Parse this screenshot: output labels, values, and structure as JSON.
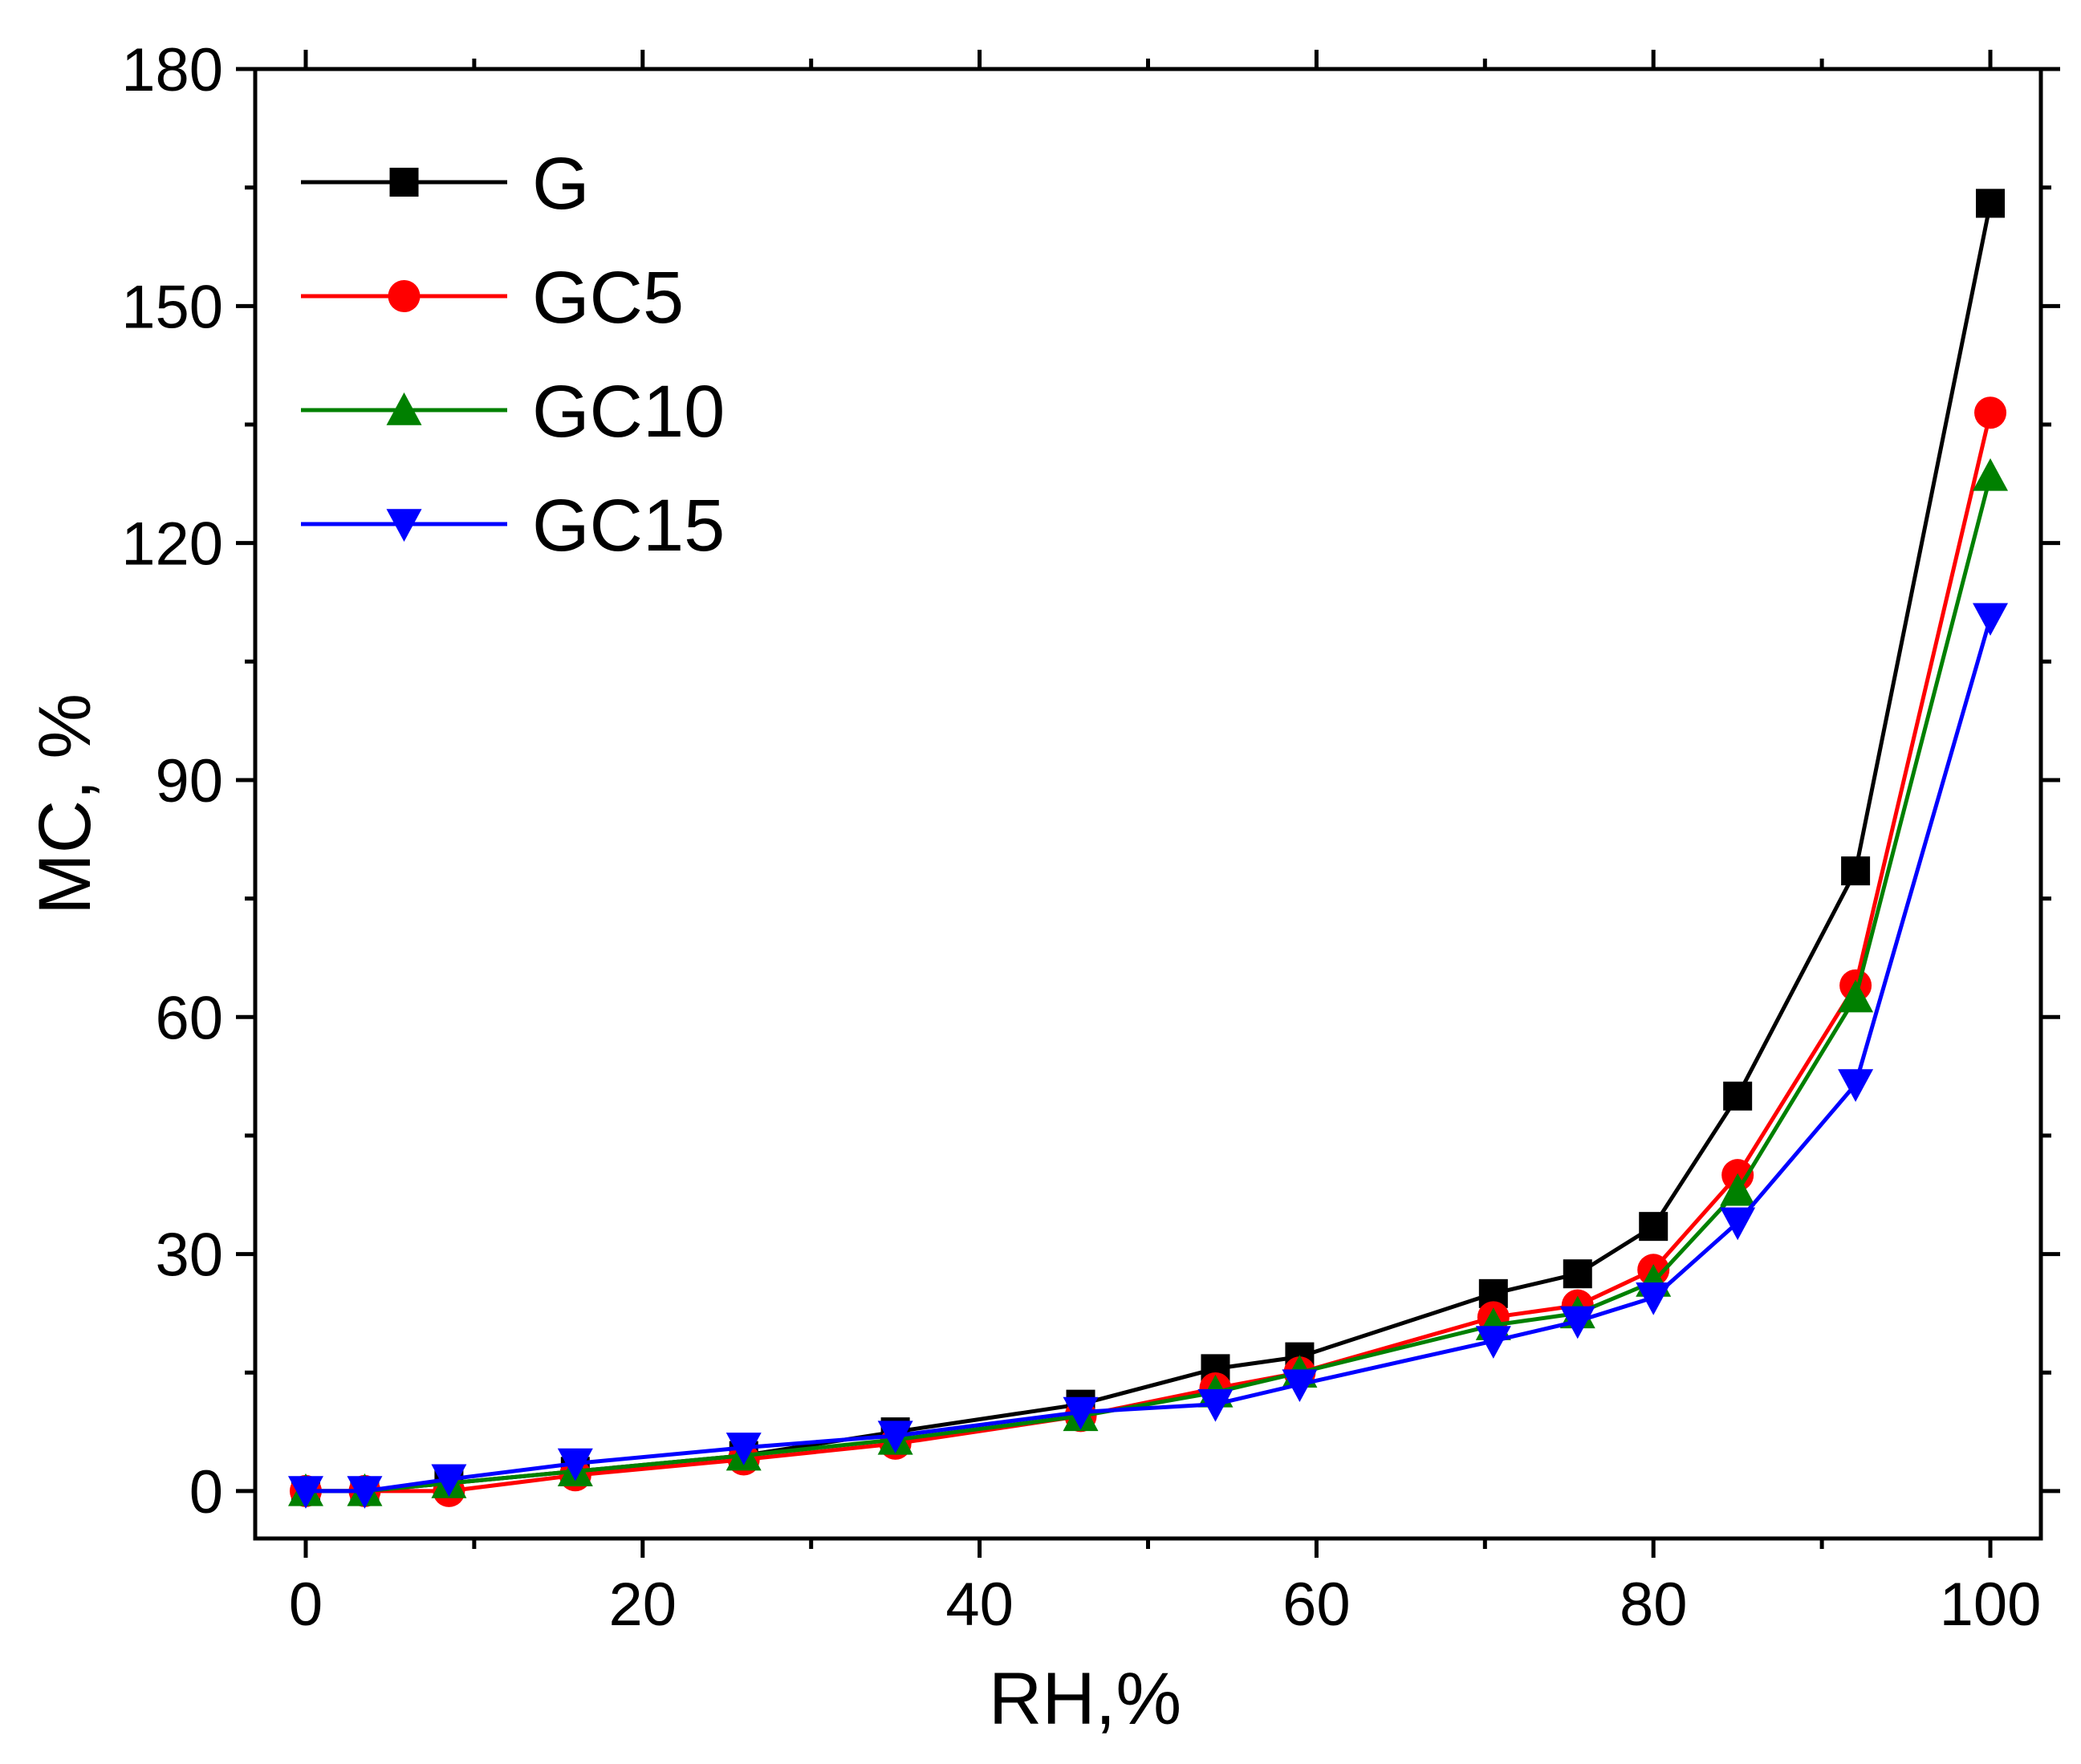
{
  "chart_data": {
    "type": "line",
    "title": "",
    "xlabel": "RH,%",
    "ylabel": "MC, %",
    "xlim": [
      -3,
      103
    ],
    "ylim": [
      -6,
      180
    ],
    "xticks": [
      0,
      20,
      40,
      60,
      80,
      100
    ],
    "yticks": [
      0,
      30,
      60,
      90,
      120,
      150,
      180
    ],
    "xtick_labels": [
      "0",
      "20",
      "40",
      "60",
      "80",
      "100"
    ],
    "ytick_labels": [
      "0",
      "30",
      "60",
      "90",
      "120",
      "150",
      "180"
    ],
    "grid": false,
    "legend_position": "top-left",
    "x": [
      0,
      3.5,
      8.5,
      16,
      26,
      35,
      46,
      54,
      59,
      70.5,
      75.5,
      80,
      85,
      92,
      100
    ],
    "series": [
      {
        "name": "G",
        "color": "#000000",
        "marker": "square",
        "values": [
          0,
          0,
          1,
          2.5,
          4.5,
          7.5,
          11,
          15.5,
          17,
          25,
          27.5,
          33.5,
          50,
          78.5,
          163
        ]
      },
      {
        "name": "GC5",
        "color": "#ff0000",
        "marker": "circle",
        "values": [
          0,
          0,
          0,
          2,
          4,
          6,
          9.5,
          13,
          15,
          22,
          23.5,
          28,
          40,
          64,
          136.5
        ]
      },
      {
        "name": "GC10",
        "color": "#008000",
        "marker": "triangle-up",
        "values": [
          0,
          0,
          1,
          2.5,
          4.5,
          6.5,
          9.5,
          12.5,
          15,
          21,
          22.5,
          26.5,
          38,
          62.5,
          128.5
        ]
      },
      {
        "name": "GC15",
        "color": "#0000ff",
        "marker": "triangle-down",
        "values": [
          0,
          0,
          1.5,
          3.5,
          5.5,
          7,
          10,
          11,
          13.5,
          19,
          21.5,
          24.5,
          34,
          51.5,
          110.5
        ]
      }
    ]
  }
}
